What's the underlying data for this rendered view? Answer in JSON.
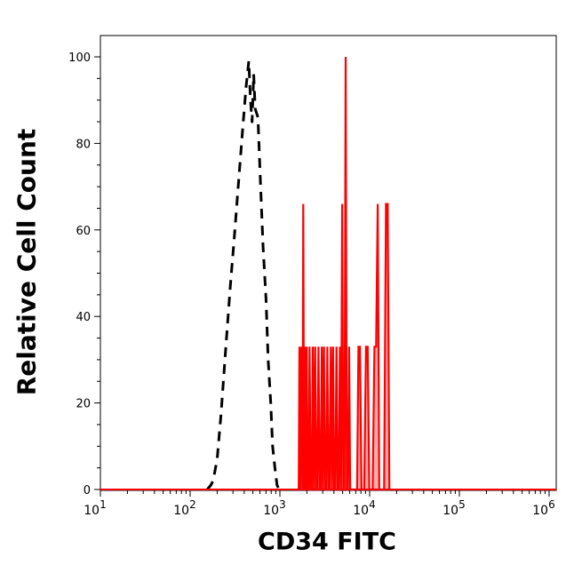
{
  "chart_data": {
    "type": "histogram",
    "ylabel": "Relative Cell Count",
    "xlabel": "CD34 FITC",
    "x_scale": "log",
    "xlim": [
      10,
      1200000
    ],
    "ylim": [
      0,
      100
    ],
    "y_ticks": [
      {
        "value": 0,
        "label": "0"
      },
      {
        "value": 20,
        "label": "20"
      },
      {
        "value": 40,
        "label": "40"
      },
      {
        "value": 60,
        "label": "60"
      },
      {
        "value": 80,
        "label": "80"
      },
      {
        "value": 100,
        "label": "100"
      }
    ],
    "x_ticks": [
      {
        "value": 10,
        "base": "10",
        "exp": "1"
      },
      {
        "value": 100,
        "base": "10",
        "exp": "2"
      },
      {
        "value": 1000,
        "base": "10",
        "exp": "3"
      },
      {
        "value": 10000,
        "base": "10",
        "exp": "4"
      },
      {
        "value": 100000,
        "base": "10",
        "exp": "5"
      },
      {
        "value": 1000000,
        "base": "10",
        "exp": "6"
      }
    ],
    "grid": false,
    "legend": "none",
    "series": [
      {
        "style": "dashed",
        "color": "#000000",
        "x": [
          155,
          170,
          180,
          200,
          220,
          250,
          280,
          310,
          340,
          380,
          420,
          450,
          470,
          490,
          510,
          530,
          570,
          610,
          650,
          700,
          740,
          790,
          830,
          880,
          930,
          980
        ],
        "y": [
          0,
          1,
          2,
          7,
          17,
          33,
          47,
          58,
          69,
          82,
          93,
          99,
          90,
          85,
          96,
          88,
          86,
          70,
          56,
          44,
          30,
          20,
          10,
          5,
          1,
          0
        ]
      },
      {
        "style": "filled",
        "color": "#ff0000",
        "x": [
          1620,
          1650,
          1690,
          1740,
          1790,
          1820,
          1860,
          1900,
          1940,
          1990,
          2030,
          2090,
          2140,
          2200,
          2270,
          2330,
          2400,
          2470,
          2540,
          2610,
          2690,
          2770,
          2850,
          2930,
          3010,
          3100,
          3190,
          3280,
          3380,
          3480,
          3580,
          3690,
          3800,
          3910,
          4030,
          4150,
          4270,
          4400,
          4530,
          4660,
          4800,
          4940,
          5090,
          5250,
          5400,
          5560,
          5730,
          5900,
          6070,
          7250,
          7500,
          7800,
          8100,
          8400,
          8700,
          9100,
          9500,
          9900,
          10300,
          10800,
          11300,
          11800,
          12300,
          12800,
          13300,
          13900,
          14500,
          15200,
          15900,
          16600,
          17300
        ],
        "y": [
          0,
          33,
          0,
          33,
          0,
          66,
          0,
          33,
          0,
          33,
          0,
          0,
          33,
          0,
          0,
          33,
          0,
          33,
          0,
          0,
          33,
          0,
          0,
          33,
          0,
          33,
          0,
          0,
          33,
          0,
          0,
          33,
          0,
          33,
          0,
          0,
          33,
          0,
          0,
          33,
          0,
          66,
          0,
          0,
          100,
          0,
          0,
          33,
          0,
          0,
          33,
          33,
          0,
          0,
          0,
          33,
          33,
          0,
          0,
          0,
          33,
          33,
          66,
          0,
          0,
          0,
          0,
          66,
          66,
          0,
          0
        ]
      }
    ]
  }
}
